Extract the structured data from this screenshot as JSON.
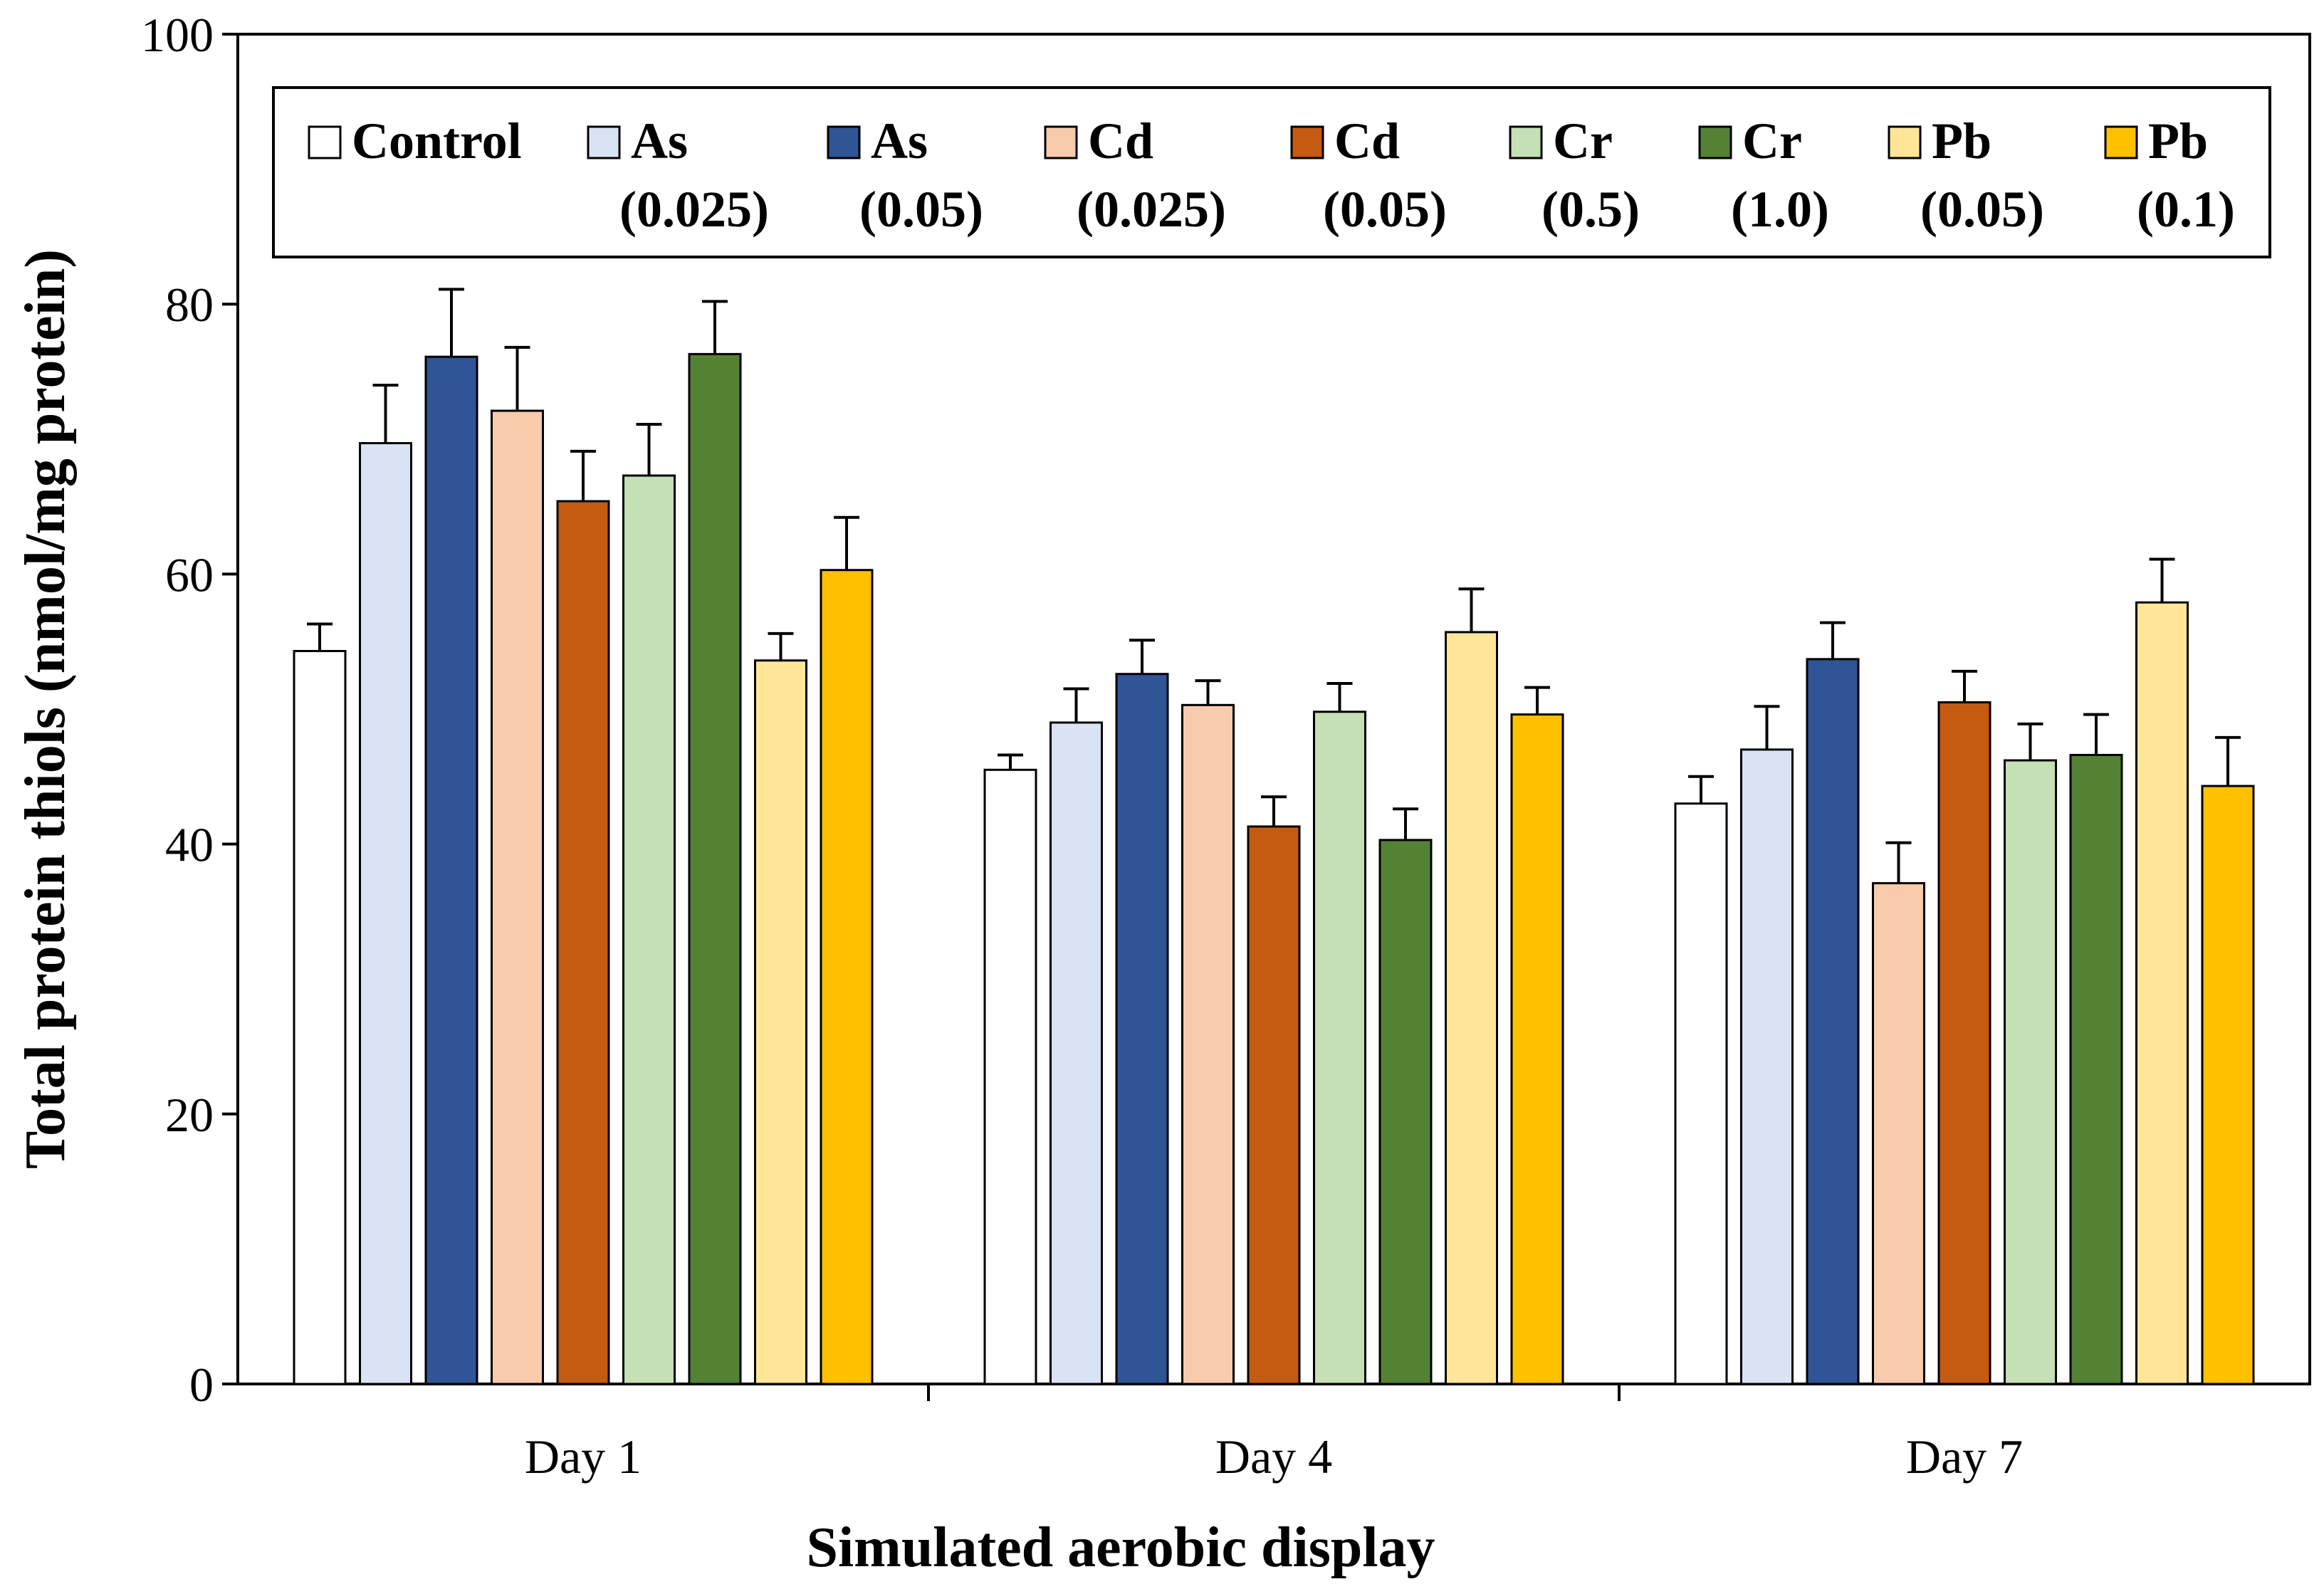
{
  "chart_data": {
    "type": "bar",
    "title": "",
    "xlabel": "Simulated aerobic display",
    "ylabel": "Total protein thiols (nmol/mg protein)",
    "ylim": [
      0,
      100
    ],
    "yticks": [
      "0",
      "20",
      "40",
      "60",
      "80",
      "100"
    ],
    "categories": [
      "Day 1",
      "Day 4",
      "Day 7"
    ],
    "legend_position": "top",
    "grid": false,
    "series": [
      {
        "name": "Control",
        "line1": "Control",
        "line2": "",
        "color": "#FFFFFF",
        "values": [
          54.3,
          45.5,
          43.0
        ],
        "errors": [
          2.0,
          1.1,
          2.0
        ]
      },
      {
        "name": "As (0.025)",
        "line1": "As",
        "line2": "(0.025)",
        "color": "#DAE3F3",
        "values": [
          69.7,
          49.0,
          47.0
        ],
        "errors": [
          4.3,
          2.5,
          3.2
        ]
      },
      {
        "name": "As (0.05)",
        "line1": "As",
        "line2": "(0.05)",
        "color": "#2F5597",
        "values": [
          76.1,
          52.6,
          53.7
        ],
        "errors": [
          5.0,
          2.5,
          2.7
        ]
      },
      {
        "name": "Cd (0.025)",
        "line1": "Cd",
        "line2": "(0.025)",
        "color": "#F8CBAD",
        "values": [
          72.1,
          50.3,
          37.1
        ],
        "errors": [
          4.7,
          1.8,
          3.0
        ]
      },
      {
        "name": "Cd (0.05)",
        "line1": "Cd",
        "line2": "(0.05)",
        "color": "#C55A11",
        "values": [
          65.4,
          41.3,
          50.5
        ],
        "errors": [
          3.7,
          2.2,
          2.3
        ]
      },
      {
        "name": "Cr (0.5)",
        "line1": "Cr",
        "line2": "(0.5)",
        "color": "#C5E0B4",
        "values": [
          67.3,
          49.8,
          46.2
        ],
        "errors": [
          3.8,
          2.1,
          2.7
        ]
      },
      {
        "name": "Cr (1.0)",
        "line1": "Cr",
        "line2": "(1.0)",
        "color": "#548235",
        "values": [
          76.3,
          40.3,
          46.6
        ],
        "errors": [
          3.9,
          2.3,
          3.0
        ]
      },
      {
        "name": "Pb (0.05)",
        "line1": "Pb",
        "line2": "(0.05)",
        "color": "#FFE699",
        "values": [
          53.6,
          55.7,
          57.9
        ],
        "errors": [
          2.0,
          3.2,
          3.2
        ]
      },
      {
        "name": "Pb (0.1)",
        "line1": "Pb",
        "line2": "(0.1)",
        "color": "#FFC000",
        "values": [
          60.3,
          49.6,
          44.3
        ],
        "errors": [
          3.9,
          2.0,
          3.6
        ]
      }
    ]
  }
}
